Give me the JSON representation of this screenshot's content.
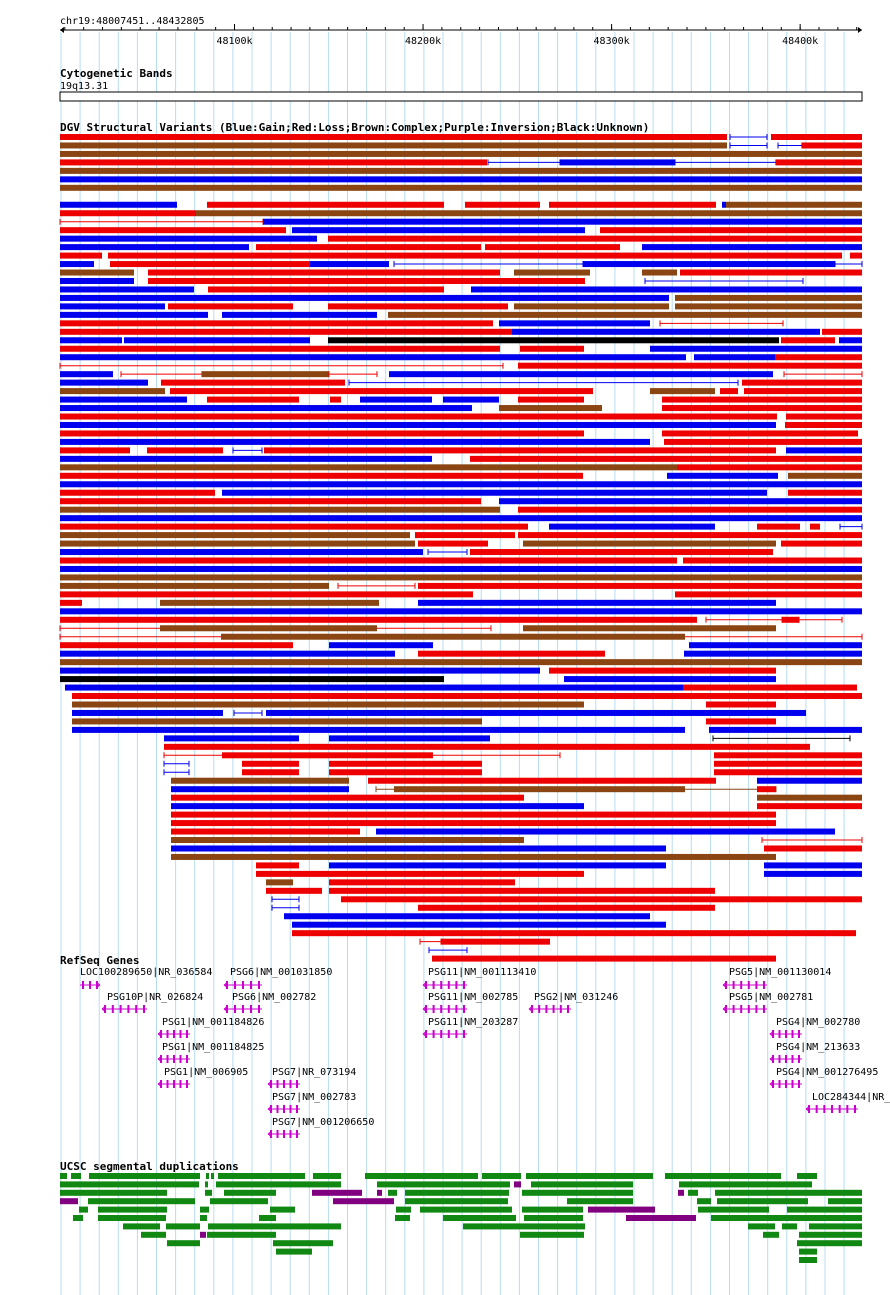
{
  "ruler": {
    "location": "chr19:48007451..48432805",
    "ticks": [
      {
        "label": "48100k",
        "pos": 48100000
      },
      {
        "label": "48200k",
        "pos": 48200000
      },
      {
        "label": "48300k",
        "pos": 48300000
      },
      {
        "label": "48400k",
        "pos": 48400000
      }
    ],
    "start": 48007451,
    "end": 48432805
  },
  "cytoband": {
    "title": "Cytogenetic Bands",
    "band": "19q13.31"
  },
  "dgv": {
    "title": "DGV Structural Variants (Blue:Gain;Red:Loss;Brown:Complex;Purple:Inversion;Black:Unknown)",
    "colors": {
      "gain": "#0000ee",
      "loss": "#ee0000",
      "complex": "#8b4513",
      "inversion": "#800080",
      "unknown": "#000000"
    }
  },
  "refseq": {
    "title": "RefSeq Genes",
    "color": "#cc00cc",
    "genes": [
      "LOC100289650|NR_036584",
      "PSG10P|NR_026824",
      "PSG1|NM_001184826",
      "PSG1|NM_001184825",
      "PSG1|NM_006905",
      "PSG6|NM_001031850",
      "PSG6|NM_002782",
      "PSG7|NR_073194",
      "PSG7|NM_002783",
      "PSG7|NM_001206650",
      "PSG11|NM_001113410",
      "PSG11|NM_002785",
      "PSG11|NM_203287",
      "PSG2|NM_031246",
      "PSG5|NM_001130014",
      "PSG5|NM_002781",
      "PSG4|NM_002780",
      "PSG4|NM_213633",
      "PSG4|NM_001276495",
      "LOC284344|NR_"
    ]
  },
  "segdup": {
    "title": "UCSC segmental duplications",
    "colors": {
      "forward": "#118811",
      "inverted": "#800080"
    }
  }
}
